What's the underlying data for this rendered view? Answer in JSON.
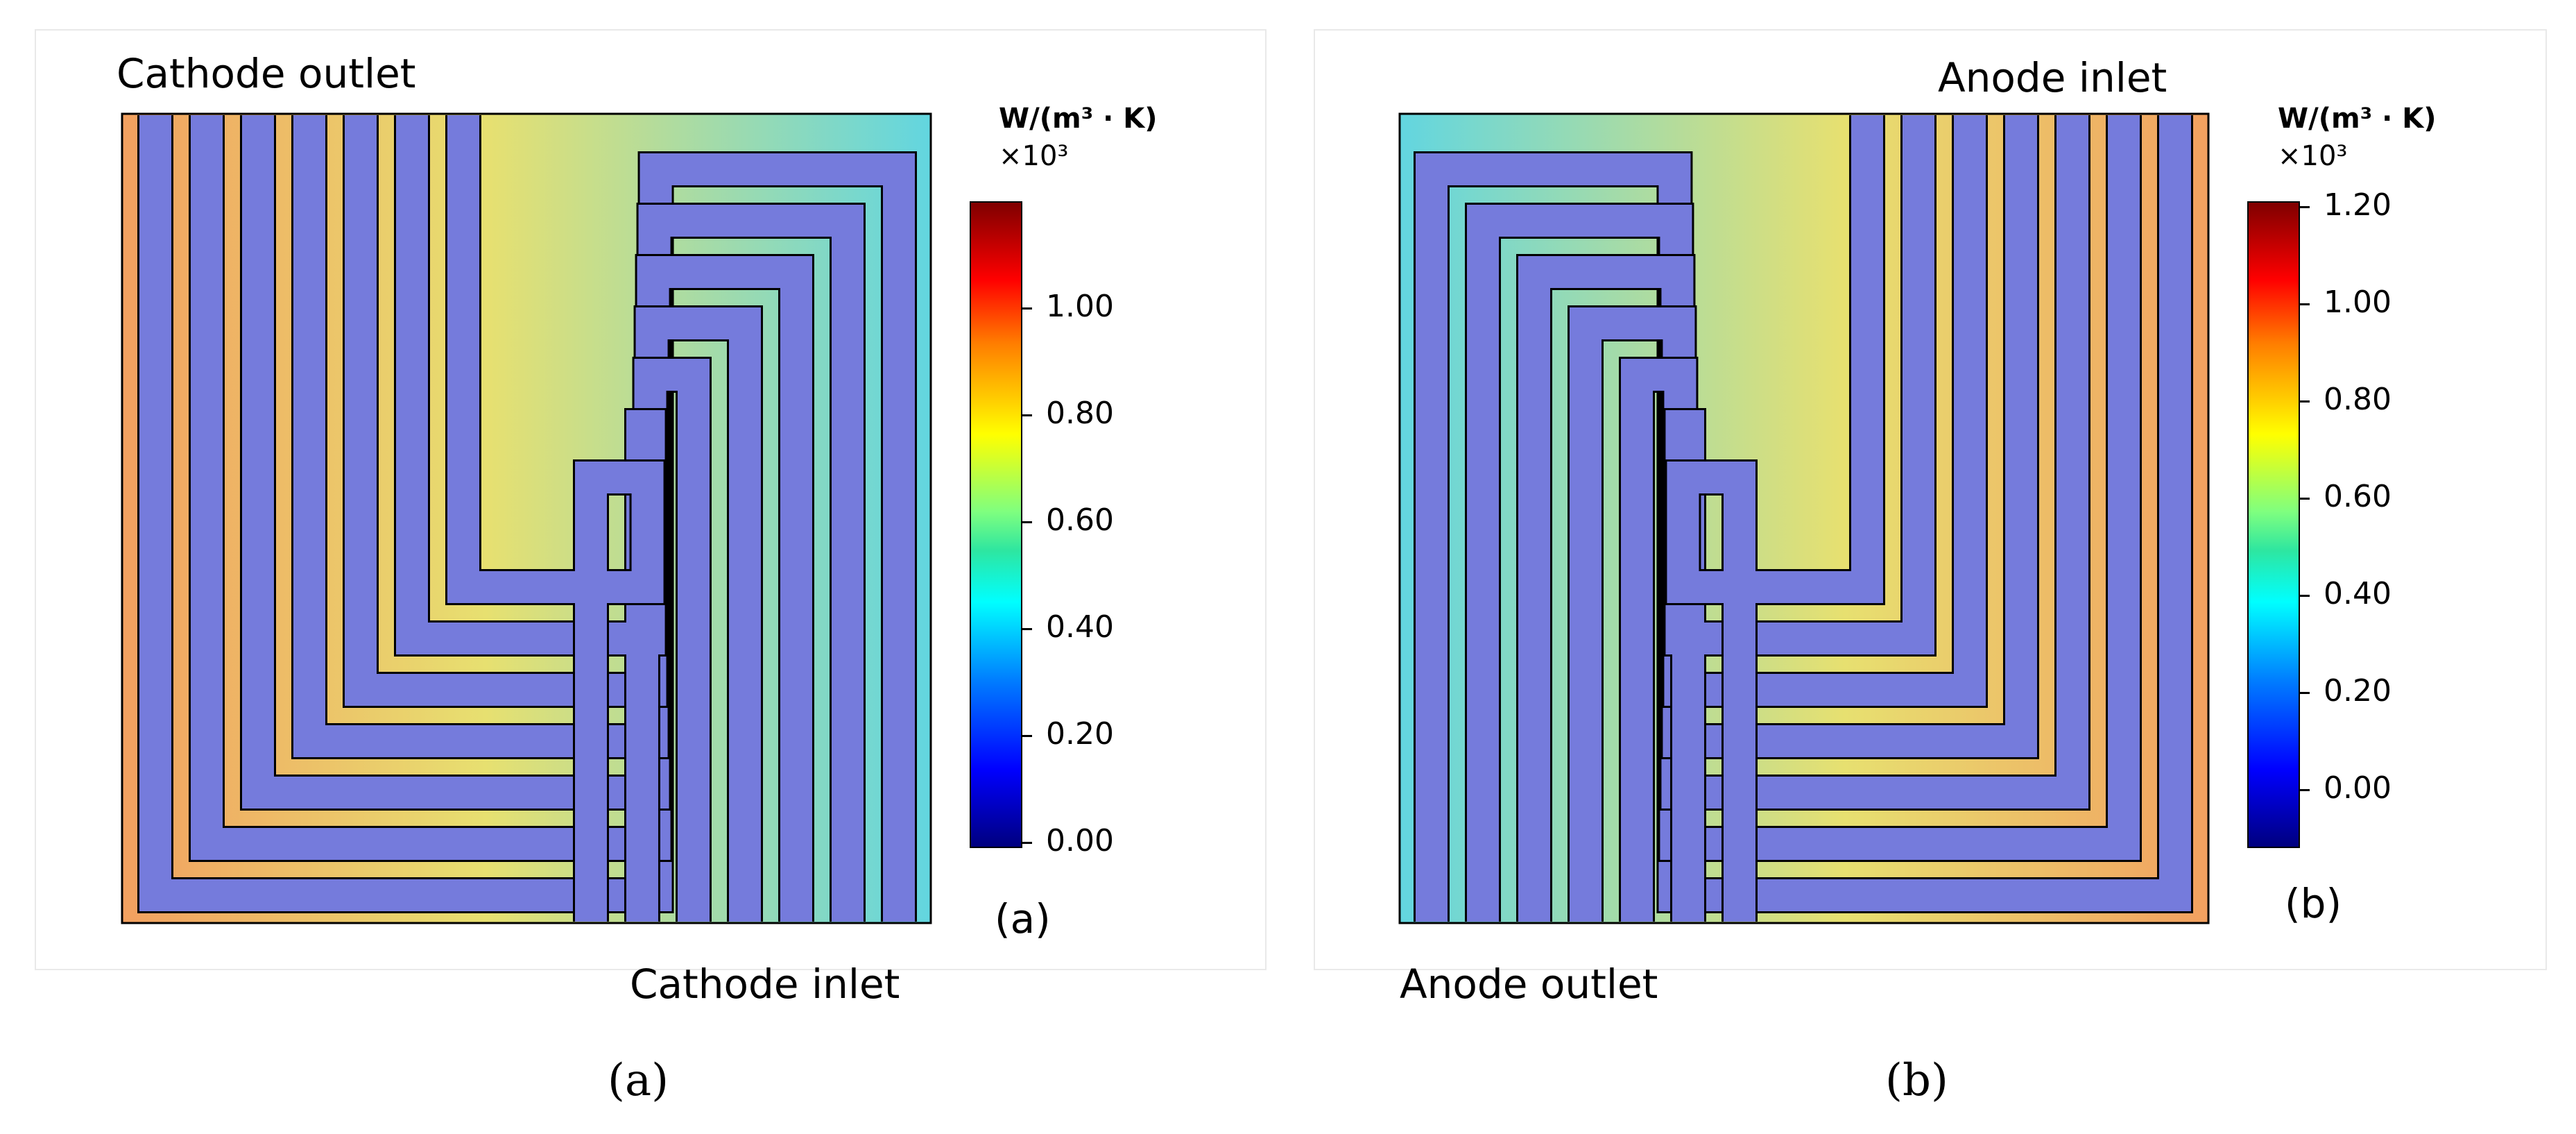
{
  "panels": [
    {
      "id": "a",
      "outlet_label": "Cathode outlet",
      "inlet_label": "Cathode inlet",
      "unit": "W/(m³ · K)",
      "multiplier": "×10³",
      "ticks": [
        "1.00",
        "0.80",
        "0.60",
        "0.40",
        "0.20",
        "0.00"
      ],
      "inner_label": "(a)",
      "caption": "(a)"
    },
    {
      "id": "b",
      "outlet_label": "Anode outlet",
      "inlet_label": "Anode inlet",
      "unit": "W/(m³ · K)",
      "multiplier": "×10³",
      "ticks": [
        "1.20",
        "1.00",
        "0.80",
        "0.60",
        "0.40",
        "0.20",
        "0.00"
      ],
      "inner_label": "(b)",
      "caption": "(b)"
    }
  ],
  "colors": {
    "channel": "#7b82e8",
    "rib_hot": "#f2a060",
    "rib_mid": "#e7e070",
    "rib_cool": "#62d6e0",
    "outline": "#000000"
  }
}
